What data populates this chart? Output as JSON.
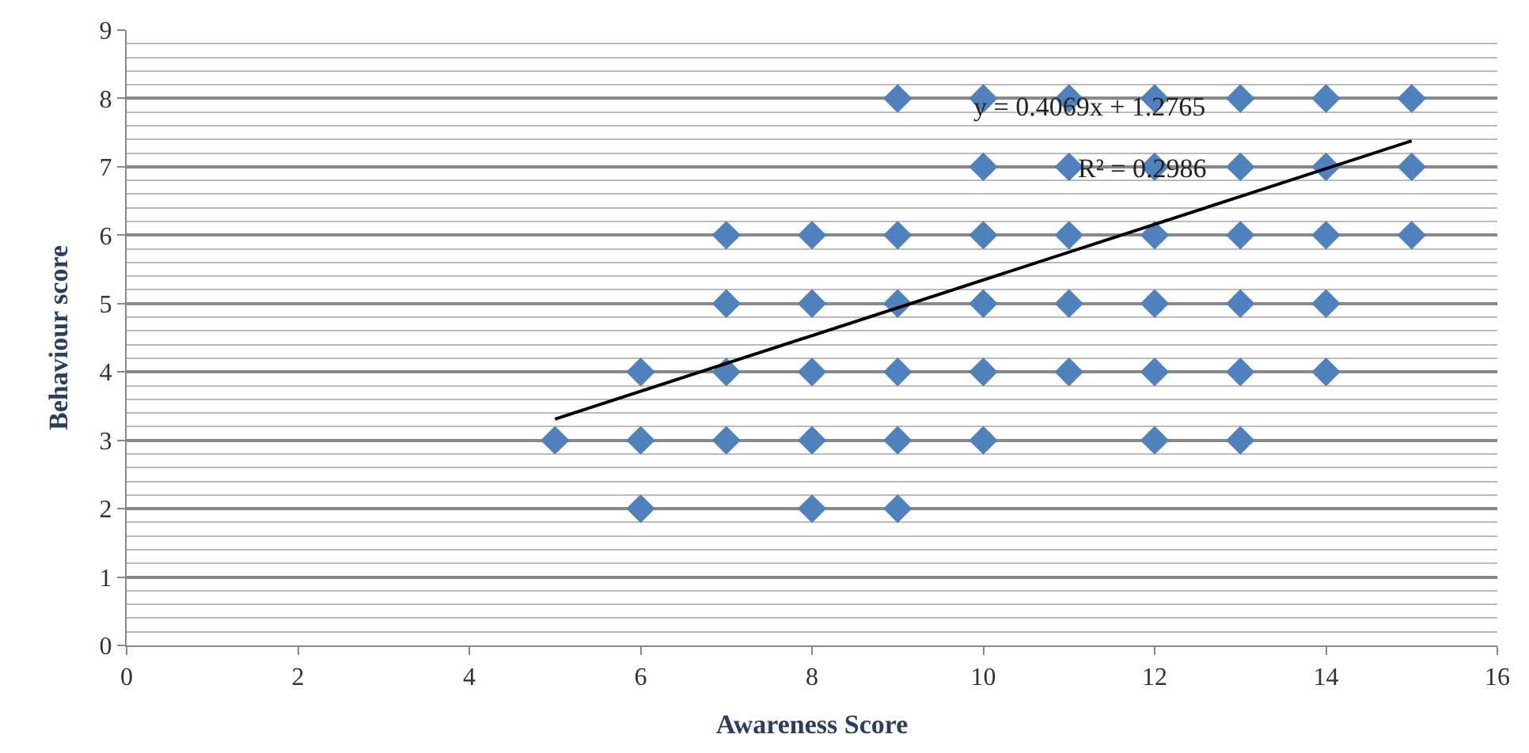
{
  "chart_data": {
    "type": "scatter",
    "xlabel": "Awareness Score",
    "ylabel": "Behaviour score",
    "xlim": [
      0,
      16
    ],
    "xticks": [
      0,
      2,
      4,
      6,
      8,
      10,
      12,
      14,
      16
    ],
    "ylim": [
      0,
      9
    ],
    "yticks": [
      0,
      1,
      2,
      3,
      4,
      5,
      6,
      7,
      8,
      9
    ],
    "grid": "y",
    "annotations": [
      "y = 0.4069x + 1.2765",
      "R² = 0.2986"
    ],
    "series": [
      {
        "marker": "diamond",
        "color": "#4f81bd",
        "x": [
          5,
          6,
          6,
          6,
          7,
          7,
          7,
          7,
          8,
          8,
          8,
          8,
          8,
          9,
          9,
          9,
          9,
          9,
          9,
          10,
          10,
          10,
          10,
          10,
          10,
          11,
          11,
          11,
          11,
          11,
          12,
          12,
          12,
          12,
          12,
          12,
          13,
          13,
          13,
          13,
          13,
          13,
          14,
          14,
          14,
          14,
          14,
          15,
          15,
          15
        ],
        "values": [
          3,
          2,
          3,
          4,
          3,
          4,
          5,
          6,
          2,
          3,
          4,
          5,
          6,
          2,
          3,
          4,
          5,
          6,
          8,
          3,
          4,
          5,
          6,
          7,
          8,
          4,
          5,
          6,
          7,
          8,
          3,
          4,
          5,
          6,
          7,
          8,
          3,
          4,
          5,
          6,
          7,
          8,
          4,
          5,
          6,
          7,
          8,
          6,
          7,
          8
        ]
      },
      {
        "type": "line",
        "marker": "none",
        "color": "#000000",
        "x": [
          5,
          15
        ],
        "values": [
          3.31,
          7.38
        ]
      }
    ]
  }
}
